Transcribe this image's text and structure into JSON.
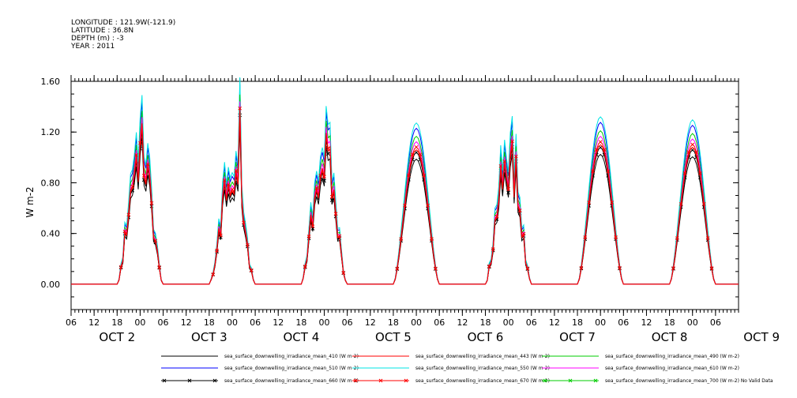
{
  "header": {
    "lines": [
      "LONGITUDE : 121.9W(-121.9)",
      "LATITUDE : 36.8N",
      "DEPTH (m) : -3",
      "YEAR : 2011"
    ]
  },
  "chart_data": {
    "type": "line",
    "title": "",
    "ylabel": "W m-2",
    "xlabel": "",
    "ylim": [
      -0.2,
      1.6
    ],
    "yticks": [
      0.0,
      0.4,
      0.8,
      1.2,
      1.6
    ],
    "ytick_labels": [
      "0.00",
      "0.40",
      "0.80",
      "1.20",
      "1.60"
    ],
    "xlim_hours": [
      0,
      174
    ],
    "hour_tick_labels": [
      "06",
      "12",
      "18",
      "00",
      "06",
      "12",
      "18",
      "00",
      "06",
      "12",
      "18",
      "00",
      "06",
      "12",
      "18",
      "00",
      "06",
      "12",
      "18",
      "00",
      "06",
      "12",
      "18",
      "00",
      "06",
      "12",
      "18",
      "00",
      "06"
    ],
    "day_labels": [
      {
        "label": "OCT  2",
        "hour": 12
      },
      {
        "label": "OCT  3",
        "hour": 36
      },
      {
        "label": "OCT  4",
        "hour": 60
      },
      {
        "label": "OCT  5",
        "hour": 84
      },
      {
        "label": "OCT  6",
        "hour": 108
      },
      {
        "label": "OCT  7",
        "hour": 132
      },
      {
        "label": "OCT  8",
        "hour": 156
      },
      {
        "label": "OCT  9",
        "hour": 180
      }
    ],
    "day_peaks": [
      {
        "noon_hour": 18,
        "peak": 1.05,
        "cloudy": true
      },
      {
        "noon_hour": 42,
        "peak": 0.85,
        "cloudy": true,
        "spike": 1.36
      },
      {
        "noon_hour": 66,
        "peak": 1.0,
        "cloudy": true
      },
      {
        "noon_hour": 90,
        "peak": 1.06,
        "cloudy": false
      },
      {
        "noon_hour": 114,
        "peak": 1.02,
        "cloudy": true
      },
      {
        "noon_hour": 138,
        "peak": 1.1,
        "cloudy": false
      },
      {
        "noon_hour": 162,
        "peak": 1.08,
        "cloudy": false
      }
    ],
    "series": [
      {
        "name": "sea_surface_downwelling_irradiance_mean_410 (W m-2)",
        "color": "#000000",
        "scale": 0.93,
        "marker": ""
      },
      {
        "name": "sea_surface_downwelling_irradiance_mean_443 (W m-2)",
        "color": "#ff0000",
        "scale": 1.0,
        "marker": ""
      },
      {
        "name": "sea_surface_downwelling_irradiance_mean_490 (W m-2)",
        "color": "#00cc00",
        "scale": 1.1,
        "marker": ""
      },
      {
        "name": "sea_surface_downwelling_irradiance_mean_510 (W m-2)",
        "color": "#0000ff",
        "scale": 1.16,
        "marker": ""
      },
      {
        "name": "sea_surface_downwelling_irradiance_mean_550 (W m-2)",
        "color": "#00e5e5",
        "scale": 1.2,
        "marker": ""
      },
      {
        "name": "sea_surface_downwelling_irradiance_mean_610 (W m-2)",
        "color": "#ff00ff",
        "scale": 1.06,
        "marker": ""
      },
      {
        "name": "sea_surface_downwelling_irradiance_mean_660 (W m-2)",
        "color": "#000000",
        "scale": 0.98,
        "marker": "x"
      },
      {
        "name": "sea_surface_downwelling_irradiance_mean_670 (W m-2)",
        "color": "#ff0000",
        "scale": 1.02,
        "marker": "x"
      },
      {
        "name": "sea_surface_downwelling_irradiance_mean_700 (W m-2) No Valid Data",
        "color": "#00cc00",
        "scale": 0,
        "marker": "x"
      }
    ],
    "legend_placement": "bottom",
    "grid": false
  }
}
